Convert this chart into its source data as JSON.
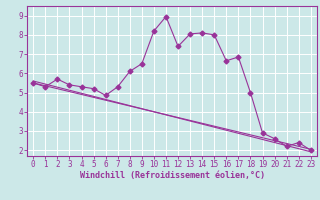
{
  "xlabel": "Windchill (Refroidissement éolien,°C)",
  "ylabel": "",
  "background_color": "#cce8e8",
  "grid_color": "#ffffff",
  "line_color": "#993399",
  "hours": [
    0,
    1,
    2,
    3,
    4,
    5,
    6,
    7,
    8,
    9,
    10,
    11,
    12,
    13,
    14,
    15,
    16,
    17,
    18,
    19,
    20,
    21,
    22,
    23
  ],
  "temp_line": [
    5.5,
    5.3,
    5.7,
    5.4,
    5.3,
    5.2,
    4.85,
    5.3,
    6.1,
    6.5,
    8.2,
    8.95,
    7.4,
    8.05,
    8.1,
    8.0,
    6.65,
    6.85,
    5.0,
    2.9,
    2.6,
    2.2,
    2.4,
    2.0
  ],
  "reg_line1": [
    5.5,
    5.35,
    5.2,
    5.05,
    4.9,
    4.75,
    4.6,
    4.45,
    4.3,
    4.15,
    4.0,
    3.85,
    3.7,
    3.55,
    3.4,
    3.25,
    3.1,
    2.95,
    2.8,
    2.65,
    2.5,
    2.35,
    2.2,
    2.05
  ],
  "reg_line2": [
    5.6,
    5.44,
    5.28,
    5.12,
    4.96,
    4.8,
    4.64,
    4.48,
    4.32,
    4.16,
    4.0,
    3.84,
    3.68,
    3.52,
    3.36,
    3.2,
    3.04,
    2.88,
    2.72,
    2.56,
    2.4,
    2.24,
    2.08,
    1.92
  ],
  "ylim": [
    1.7,
    9.5
  ],
  "yticks": [
    2,
    3,
    4,
    5,
    6,
    7,
    8,
    9
  ],
  "xlim": [
    -0.5,
    23.5
  ],
  "xticks": [
    0,
    1,
    2,
    3,
    4,
    5,
    6,
    7,
    8,
    9,
    10,
    11,
    12,
    13,
    14,
    15,
    16,
    17,
    18,
    19,
    20,
    21,
    22,
    23
  ],
  "marker": "D",
  "marker_size": 2.5,
  "linewidth": 0.8,
  "tick_fontsize": 5.5,
  "xlabel_fontsize": 6.0
}
